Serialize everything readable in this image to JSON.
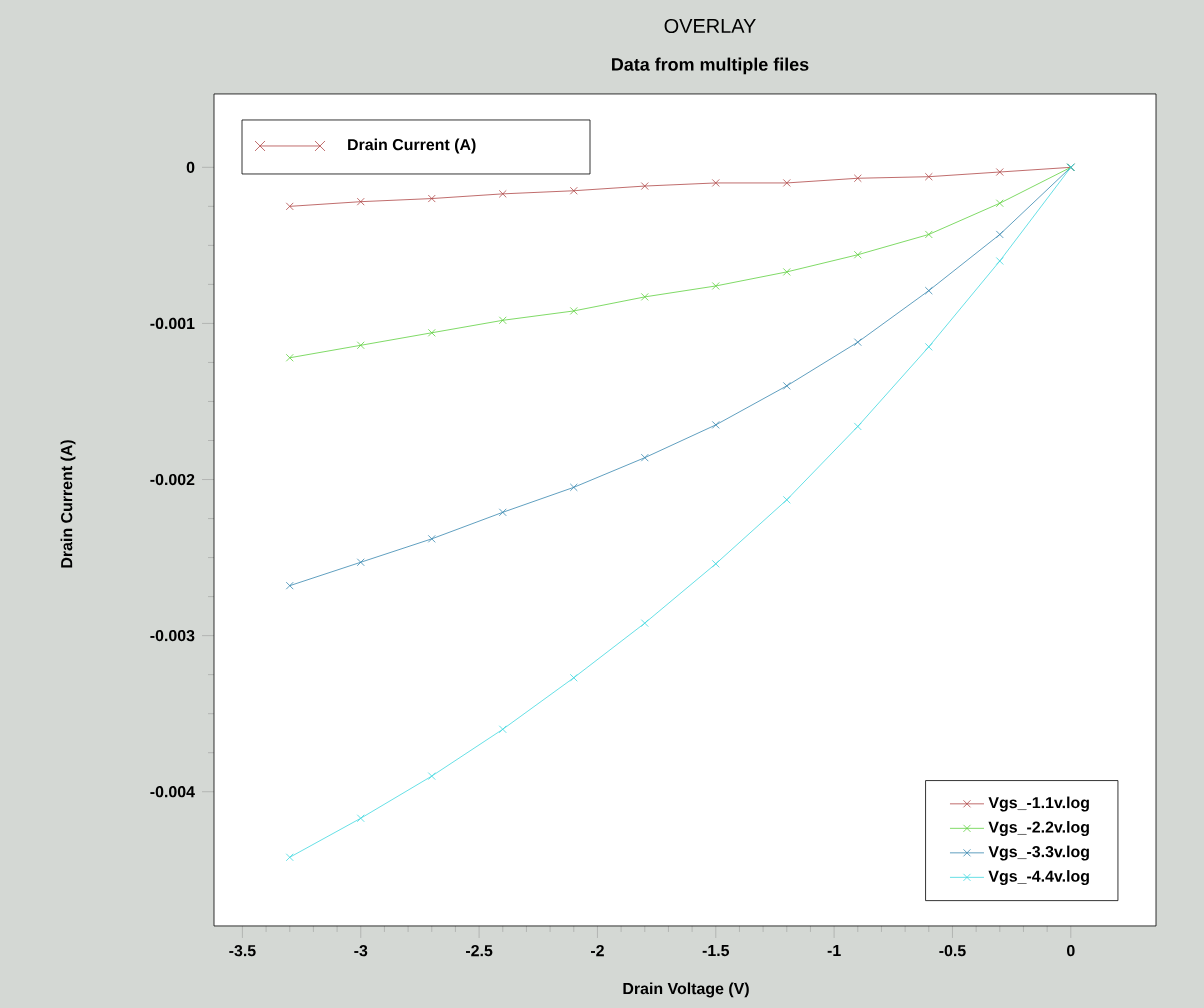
{
  "chart_data": {
    "type": "line",
    "title": "OVERLAY",
    "subtitle": "Data from multiple files",
    "xlabel": "Drain Voltage (V)",
    "ylabel": "Drain Current (A)",
    "annotations": [
      "Drain Current (A)"
    ],
    "x": [
      -3.3,
      -3.0,
      -2.7,
      -2.4,
      -2.1,
      -1.8,
      -1.5,
      -1.2,
      -0.9,
      -0.6,
      -0.3,
      0
    ],
    "series": [
      {
        "name": "Vgs_-1.1v.log",
        "color": "#b04848",
        "values": [
          -0.00025,
          -0.00022,
          -0.0002,
          -0.00017,
          -0.00015,
          -0.00012,
          -0.0001,
          -0.0001,
          -7e-05,
          -6e-05,
          -3e-05,
          0
        ]
      },
      {
        "name": "Vgs_-2.2v.log",
        "color": "#60d040",
        "values": [
          -0.00122,
          -0.00114,
          -0.00106,
          -0.00098,
          -0.00092,
          -0.00083,
          -0.00076,
          -0.00067,
          -0.00056,
          -0.00043,
          -0.00023,
          0
        ]
      },
      {
        "name": "Vgs_-3.3v.log",
        "color": "#3888b0",
        "values": [
          -0.00268,
          -0.00253,
          -0.00238,
          -0.00221,
          -0.00205,
          -0.00186,
          -0.00165,
          -0.0014,
          -0.00112,
          -0.00079,
          -0.00043,
          0
        ]
      },
      {
        "name": "Vgs_-4.4v.log",
        "color": "#40d8e0",
        "values": [
          -0.00442,
          -0.00417,
          -0.0039,
          -0.0036,
          -0.00327,
          -0.00292,
          -0.00254,
          -0.00213,
          -0.00166,
          -0.00115,
          -0.0006,
          0
        ]
      }
    ],
    "xlim": [
      -3.62,
      0.36
    ],
    "ylim": [
      -0.00486,
      0.00047
    ],
    "xticks": [
      -3.5,
      -3,
      -2.5,
      -2,
      -1.5,
      -1,
      -0.5,
      0
    ],
    "yticks": [
      -0.004,
      -0.003,
      -0.002,
      -0.001,
      0
    ],
    "legend": "bottom right",
    "marker": "cross",
    "line_style": "solid"
  }
}
